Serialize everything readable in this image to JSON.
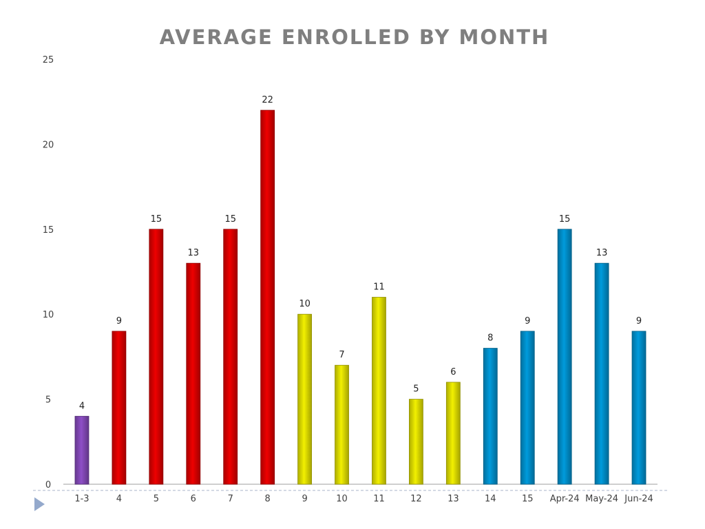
{
  "chart_data": {
    "type": "bar",
    "title": "AVERAGE ENROLLED BY MONTH",
    "xlabel": "",
    "ylabel": "",
    "ylim": [
      0,
      25
    ],
    "yticks": [
      0,
      5,
      10,
      15,
      20,
      25
    ],
    "grid": false,
    "legend": "none",
    "categories": [
      "1-3",
      "4",
      "5",
      "6",
      "7",
      "8",
      "9",
      "10",
      "11",
      "12",
      "13",
      "14",
      "15",
      "Apr-24",
      "May-24",
      "Jun-24"
    ],
    "values": [
      4,
      9,
      15,
      13,
      15,
      22,
      10,
      7,
      11,
      5,
      6,
      8,
      9,
      15,
      13,
      9
    ],
    "bar_colors": [
      "#8e4fc7",
      "#ee0000",
      "#ee0000",
      "#ee0000",
      "#ee0000",
      "#ee0000",
      "#f2f000",
      "#f2f000",
      "#f2f000",
      "#f2f000",
      "#f2f000",
      "#009bdc",
      "#009bdc",
      "#009bdc",
      "#009bdc",
      "#009bdc"
    ],
    "data_labels": true
  },
  "decor": {
    "arrow_color": "#94a9cc",
    "divider_color": "#a8b4c8"
  }
}
